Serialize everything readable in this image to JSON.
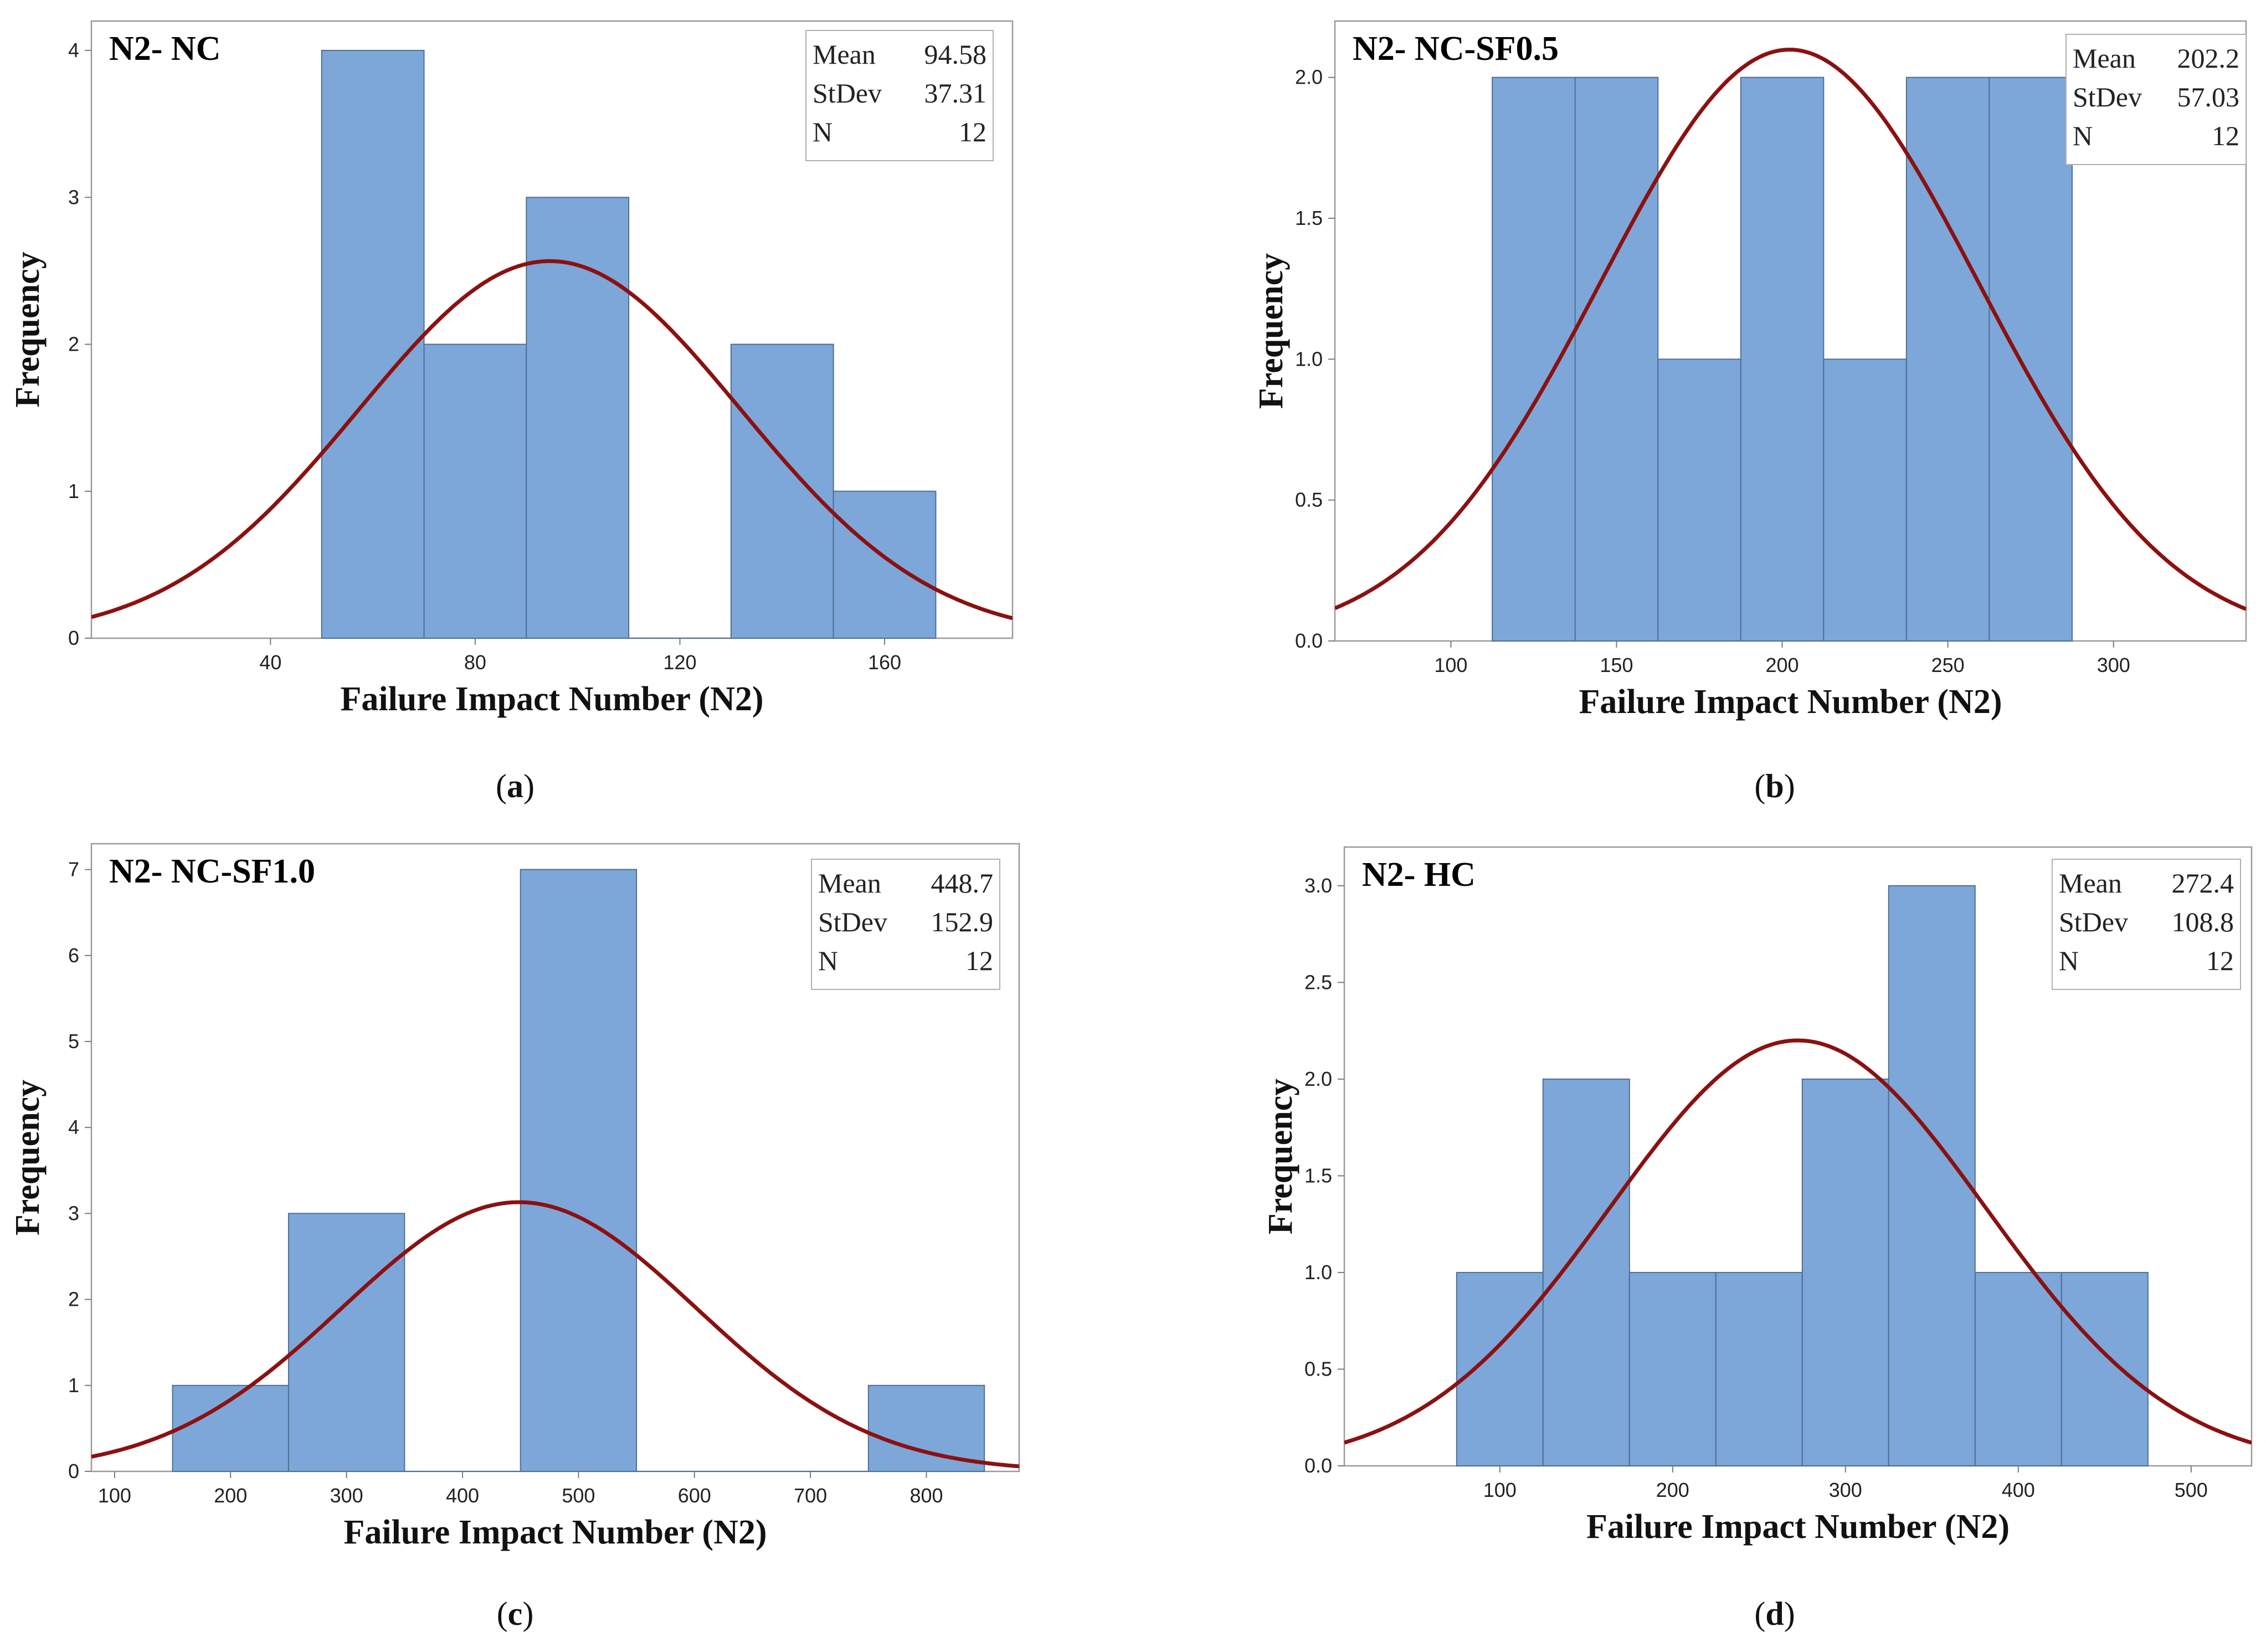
{
  "colors": {
    "bar": "#7da7d9",
    "bar_edge": "#4f6f93",
    "curve": "#8b1111"
  },
  "chart_data": [
    {
      "type": "bar",
      "panel": "a",
      "caption_label": "a",
      "title": "N2- NC",
      "xlabel": "Failure Impact Number (N2)",
      "ylabel": "Frequency",
      "xlim": [
        5,
        185
      ],
      "ylim": [
        0,
        4.2
      ],
      "xticks": [
        40,
        80,
        120,
        160
      ],
      "yticks": [
        0,
        1,
        2,
        3,
        4
      ],
      "ytick_labels": [
        "0",
        "1",
        "2",
        "3",
        "4"
      ],
      "bins": [
        {
          "start": 50,
          "end": 70,
          "count": 4
        },
        {
          "start": 70,
          "end": 90,
          "count": 2
        },
        {
          "start": 90,
          "end": 110,
          "count": 3
        },
        {
          "start": 110,
          "end": 130,
          "count": 0
        },
        {
          "start": 130,
          "end": 150,
          "count": 2
        },
        {
          "start": 150,
          "end": 170,
          "count": 1
        }
      ],
      "fit": {
        "mean": 94.58,
        "stdev": 37.31,
        "n": 12,
        "bin_width": 20
      },
      "stats": [
        {
          "label": "Mean",
          "value": "94.58"
        },
        {
          "label": "StDev",
          "value": "37.31"
        },
        {
          "label": "N",
          "value": "12"
        }
      ]
    },
    {
      "type": "bar",
      "panel": "b",
      "caption_label": "b",
      "title": "N2- NC-SF0.5",
      "xlabel": "Failure Impact Number (N2)",
      "ylabel": "Frequency",
      "xlim": [
        65,
        340
      ],
      "ylim": [
        0,
        2.2
      ],
      "xticks": [
        100,
        150,
        200,
        250,
        300
      ],
      "yticks": [
        0,
        0.5,
        1,
        1.5,
        2
      ],
      "ytick_labels": [
        "0.0",
        "0.5",
        "1.0",
        "1.5",
        "2.0"
      ],
      "bins": [
        {
          "start": 112.5,
          "end": 137.5,
          "count": 2
        },
        {
          "start": 137.5,
          "end": 162.5,
          "count": 2
        },
        {
          "start": 162.5,
          "end": 187.5,
          "count": 1
        },
        {
          "start": 187.5,
          "end": 212.5,
          "count": 2
        },
        {
          "start": 212.5,
          "end": 237.5,
          "count": 1
        },
        {
          "start": 237.5,
          "end": 262.5,
          "count": 2
        },
        {
          "start": 262.5,
          "end": 287.5,
          "count": 2
        }
      ],
      "fit": {
        "mean": 202.2,
        "stdev": 57.03,
        "n": 12,
        "bin_width": 25
      },
      "stats": [
        {
          "label": "Mean",
          "value": "202.2"
        },
        {
          "label": "StDev",
          "value": "57.03"
        },
        {
          "label": "N",
          "value": "12"
        }
      ]
    },
    {
      "type": "bar",
      "panel": "c",
      "caption_label": "c",
      "title": "N2- NC-SF1.0",
      "xlabel": "Failure Impact Number (N2)",
      "ylabel": "Frequency",
      "xlim": [
        80,
        880
      ],
      "ylim": [
        0,
        7.3
      ],
      "xticks": [
        100,
        200,
        300,
        400,
        500,
        600,
        700,
        800
      ],
      "yticks": [
        0,
        1,
        2,
        3,
        4,
        5,
        6,
        7
      ],
      "ytick_labels": [
        "0",
        "1",
        "2",
        "3",
        "4",
        "5",
        "6",
        "7"
      ],
      "bins": [
        {
          "start": 150,
          "end": 250,
          "count": 1
        },
        {
          "start": 250,
          "end": 350,
          "count": 3
        },
        {
          "start": 350,
          "end": 450,
          "count": 0
        },
        {
          "start": 450,
          "end": 550,
          "count": 7
        },
        {
          "start": 550,
          "end": 650,
          "count": 0
        },
        {
          "start": 650,
          "end": 750,
          "count": 0
        },
        {
          "start": 750,
          "end": 850,
          "count": 1
        }
      ],
      "fit": {
        "mean": 448.7,
        "stdev": 152.9,
        "n": 12,
        "bin_width": 100
      },
      "stats": [
        {
          "label": "Mean",
          "value": "448.7"
        },
        {
          "label": "StDev",
          "value": "152.9"
        },
        {
          "label": "N",
          "value": "12"
        }
      ]
    },
    {
      "type": "bar",
      "panel": "d",
      "caption_label": "d",
      "title": "N2- HC",
      "xlabel": "Failure Impact Number (N2)",
      "ylabel": "Frequency",
      "xlim": [
        10,
        535
      ],
      "ylim": [
        0,
        3.2
      ],
      "xticks": [
        100,
        200,
        300,
        400,
        500
      ],
      "yticks": [
        0,
        0.5,
        1,
        1.5,
        2,
        2.5,
        3
      ],
      "ytick_labels": [
        "0.0",
        "0.5",
        "1.0",
        "1.5",
        "2.0",
        "2.5",
        "3.0"
      ],
      "bins": [
        {
          "start": 75,
          "end": 125,
          "count": 1
        },
        {
          "start": 125,
          "end": 175,
          "count": 2
        },
        {
          "start": 175,
          "end": 225,
          "count": 1
        },
        {
          "start": 225,
          "end": 275,
          "count": 1
        },
        {
          "start": 275,
          "end": 325,
          "count": 2
        },
        {
          "start": 325,
          "end": 375,
          "count": 3
        },
        {
          "start": 375,
          "end": 425,
          "count": 1
        },
        {
          "start": 425,
          "end": 475,
          "count": 1
        }
      ],
      "fit": {
        "mean": 272.4,
        "stdev": 108.8,
        "n": 12,
        "bin_width": 50
      },
      "stats": [
        {
          "label": "Mean",
          "value": "272.4"
        },
        {
          "label": "StDev",
          "value": "108.8"
        },
        {
          "label": "N",
          "value": "12"
        }
      ]
    }
  ]
}
